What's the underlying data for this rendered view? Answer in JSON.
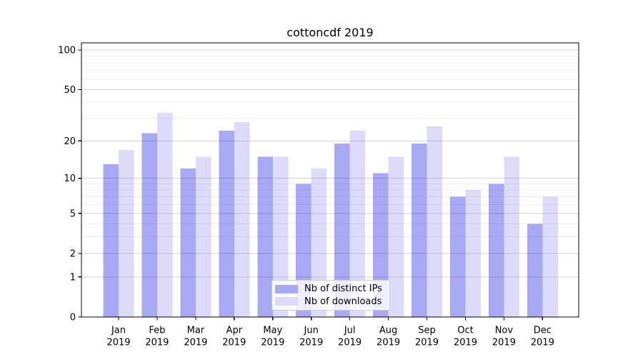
{
  "title": "cottoncdf 2019",
  "chart_data": {
    "type": "bar",
    "title": "cottoncdf 2019",
    "xlabel": "",
    "ylabel": "",
    "yscale": "log1p",
    "ylim": [
      0,
      100
    ],
    "grid": true,
    "legend_position": "lower center inside plot",
    "categories": [
      "Jan 2019",
      "Feb 2019",
      "Mar 2019",
      "Apr 2019",
      "May 2019",
      "Jun 2019",
      "Jul 2019",
      "Aug 2019",
      "Sep 2019",
      "Oct 2019",
      "Nov 2019",
      "Dec 2019"
    ],
    "series": [
      {
        "name": "Nb of distinct IPs",
        "color": "#a8a8f4",
        "values": [
          13,
          23,
          12,
          24,
          15,
          9,
          19,
          11,
          19,
          7,
          9,
          4
        ]
      },
      {
        "name": "Nb of downloads",
        "color": "#dcdcfa",
        "values": [
          17,
          33,
          15,
          28,
          15,
          12,
          24,
          15,
          26,
          8,
          15,
          7
        ]
      }
    ],
    "ytick_values": [
      0,
      1,
      2,
      5,
      10,
      20,
      50,
      100
    ],
    "minor_ytick_values": [
      3,
      4,
      6,
      7,
      8,
      9,
      30,
      40,
      60,
      70,
      80,
      90
    ]
  },
  "colors": {
    "background": "#ffffff",
    "spine": "#000000",
    "major_grid": "rgba(0,0,0,0.16)",
    "minor_grid": "rgba(0,0,0,0.07)",
    "legend_border": "#cccccc"
  }
}
